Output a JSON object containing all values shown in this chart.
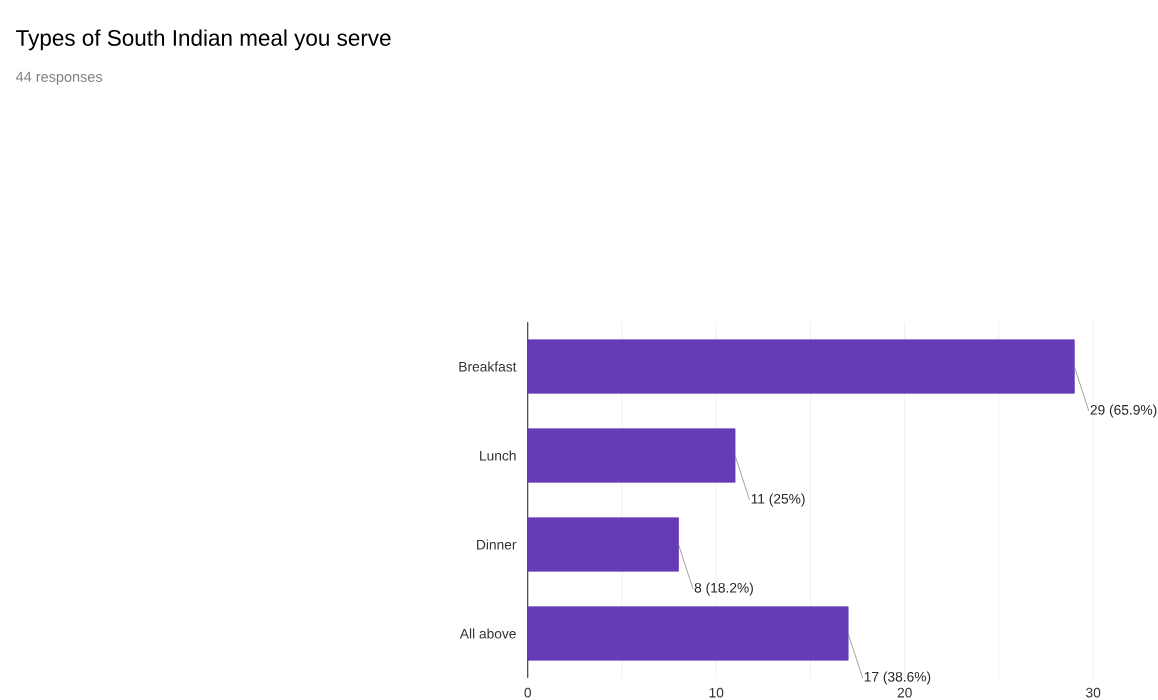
{
  "chart_data": {
    "type": "bar",
    "orientation": "horizontal",
    "title": "Types of South Indian meal you serve",
    "subtitle": "44 responses",
    "categories": [
      "Breakfast",
      "Lunch",
      "Dinner",
      "All above"
    ],
    "values": [
      29,
      11,
      8,
      17
    ],
    "value_labels": [
      "29 (65.9%)",
      "11 (25%)",
      "8 (18.2%)",
      "17 (38.6%)"
    ],
    "color": "#673ab7",
    "xlim": [
      0,
      30
    ],
    "xticks": [
      0,
      {
        "value": 5,
        "label": null
      },
      10,
      {
        "value": 15,
        "label": null
      },
      20,
      {
        "value": 25,
        "label": null
      },
      30
    ],
    "grid": "x"
  }
}
